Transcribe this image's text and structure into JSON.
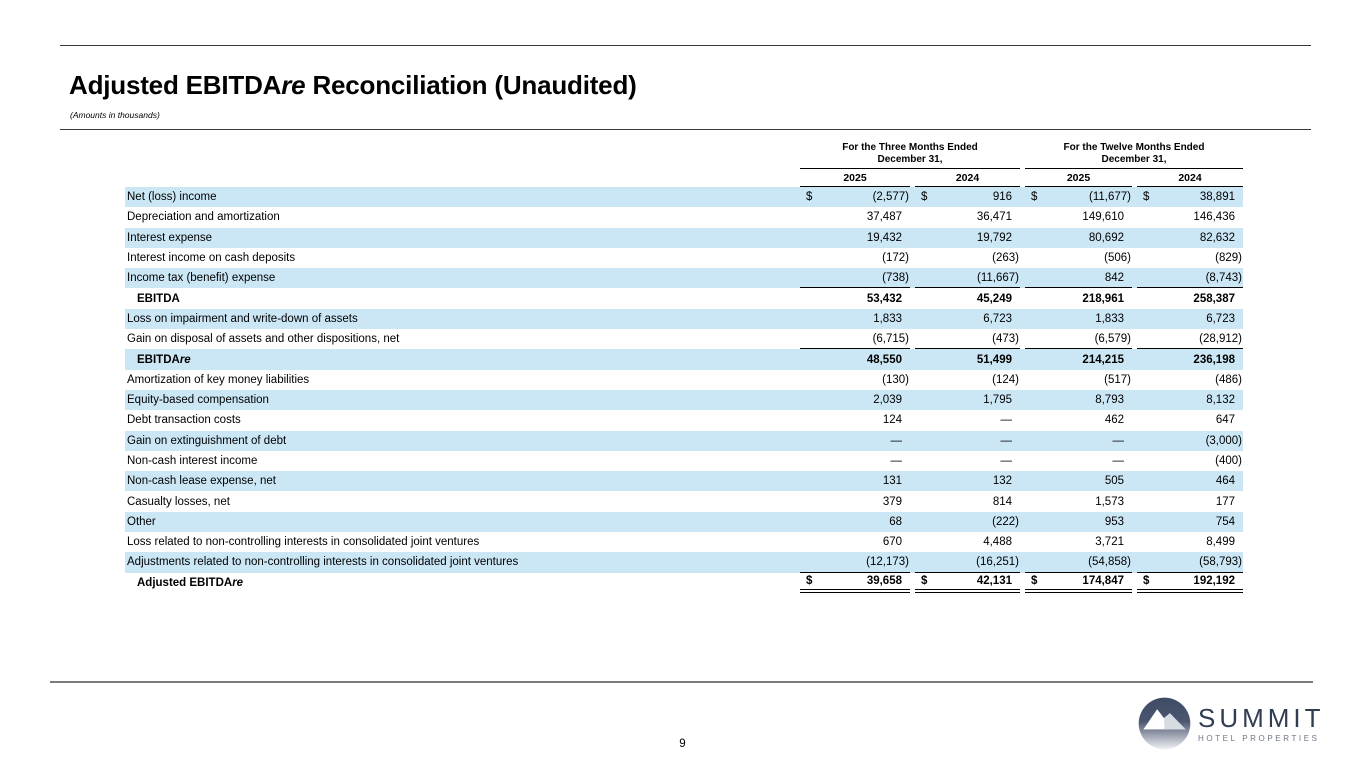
{
  "document": {
    "title": {
      "prefix": "Adjusted EBITDA",
      "italic": "re",
      "suffix": " Reconciliation (Unaudited)"
    },
    "subtitle": "(Amounts in thousands)",
    "page_number": "9"
  },
  "logo": {
    "brand": "SUMMIT",
    "tagline": "HOTEL PROPERTIES",
    "icon": "mountain-circle-icon",
    "brand_color": "#313d52"
  },
  "colors": {
    "row_highlight": "#cbe7f6",
    "table_rule": "#000000",
    "footer_rule": "#7c7c7c"
  },
  "table": {
    "currency_symbol": "$",
    "groups": [
      {
        "line1": "For the Three Months Ended",
        "line2": "December 31,"
      },
      {
        "line1": "For the Twelve Months Ended",
        "line2": "December 31,"
      }
    ],
    "years": [
      "2025",
      "2024",
      "2025",
      "2024"
    ],
    "rows": [
      {
        "label": "Net (loss) income",
        "dollar": true,
        "highlight": true,
        "values": [
          "(2,577)",
          "916",
          "(11,677)",
          "38,891"
        ]
      },
      {
        "label": "Depreciation and amortization",
        "values": [
          "37,487",
          "36,471",
          "149,610",
          "146,436"
        ]
      },
      {
        "label": "Interest expense",
        "highlight": true,
        "values": [
          "19,432",
          "19,792",
          "80,692",
          "82,632"
        ]
      },
      {
        "label": "Interest income on cash deposits",
        "values": [
          "(172)",
          "(263)",
          "(506)",
          "(829)"
        ]
      },
      {
        "label": "Income tax (benefit) expense",
        "highlight": true,
        "rule_below": true,
        "values": [
          "(738)",
          "(11,667)",
          "842",
          "(8,743)"
        ]
      },
      {
        "label": "EBITDA",
        "bold": true,
        "indent": true,
        "values": [
          "53,432",
          "45,249",
          "218,961",
          "258,387"
        ]
      },
      {
        "label": "Loss on impairment and write-down of assets",
        "highlight": true,
        "values": [
          "1,833",
          "6,723",
          "1,833",
          "6,723"
        ]
      },
      {
        "label": "Gain on disposal of assets and other dispositions, net",
        "rule_below": true,
        "values": [
          "(6,715)",
          "(473)",
          "(6,579)",
          "(28,912)"
        ]
      },
      {
        "label": "EBITDA",
        "label_italic": "re",
        "bold": true,
        "indent": true,
        "highlight": true,
        "values": [
          "48,550",
          "51,499",
          "214,215",
          "236,198"
        ]
      },
      {
        "label": "Amortization of key money liabilities",
        "values": [
          "(130)",
          "(124)",
          "(517)",
          "(486)"
        ]
      },
      {
        "label": "Equity-based compensation",
        "highlight": true,
        "values": [
          "2,039",
          "1,795",
          "8,793",
          "8,132"
        ]
      },
      {
        "label": "Debt transaction costs",
        "values": [
          "124",
          "—",
          "462",
          "647"
        ]
      },
      {
        "label": "Gain on extinguishment of debt",
        "highlight": true,
        "values": [
          "—",
          "—",
          "—",
          "(3,000)"
        ]
      },
      {
        "label": "Non-cash interest income",
        "values": [
          "—",
          "—",
          "—",
          "(400)"
        ]
      },
      {
        "label": "Non-cash lease expense, net",
        "highlight": true,
        "values": [
          "131",
          "132",
          "505",
          "464"
        ]
      },
      {
        "label": "Casualty losses, net",
        "values": [
          "379",
          "814",
          "1,573",
          "177"
        ]
      },
      {
        "label": "Other",
        "highlight": true,
        "values": [
          "68",
          "(222)",
          "953",
          "754"
        ]
      },
      {
        "label": "Loss related to non-controlling interests in consolidated joint ventures",
        "values": [
          "670",
          "4,488",
          "3,721",
          "8,499"
        ]
      },
      {
        "label": "Adjustments related to non-controlling interests in consolidated joint ventures",
        "highlight": true,
        "rule_below": true,
        "values": [
          "(12,173)",
          "(16,251)",
          "(54,858)",
          "(58,793)"
        ]
      },
      {
        "label": "Adjusted EBITDA",
        "label_italic": "re",
        "bold": true,
        "indent": true,
        "dollar": true,
        "double_below": true,
        "values": [
          "39,658",
          "42,131",
          "174,847",
          "192,192"
        ]
      }
    ]
  }
}
